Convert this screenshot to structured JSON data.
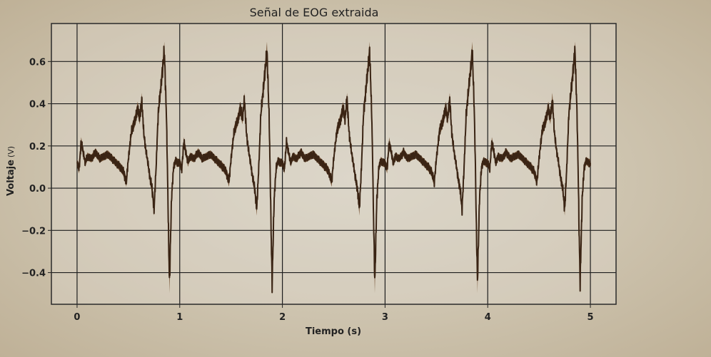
{
  "chart_data": {
    "type": "line",
    "title": "Señal de EOG extraida",
    "xlabel": "Tiempo (s)",
    "ylabel_main": "Voltaje",
    "ylabel_unit": "(V)",
    "xlim": [
      -0.25,
      5.25
    ],
    "ylim": [
      -0.55,
      0.78
    ],
    "xticks": [
      0,
      1,
      2,
      3,
      4,
      5
    ],
    "xtick_labels": [
      "0",
      "1",
      "2",
      "3",
      "4",
      "5"
    ],
    "yticks": [
      -0.4,
      -0.2,
      0.0,
      0.2,
      0.4,
      0.6
    ],
    "ytick_labels": [
      "−0.4",
      "−0.2",
      "0.0",
      "0.2",
      "0.4",
      "0.6"
    ],
    "grid": true,
    "line_color": "#3a2414",
    "fill_color": "#6b4526",
    "series": [
      {
        "period_s": 1.0,
        "cycle_keypoints": {
          "t": [
            0.0,
            0.02,
            0.04,
            0.06,
            0.08,
            0.1,
            0.14,
            0.18,
            0.22,
            0.26,
            0.3,
            0.34,
            0.38,
            0.42,
            0.45,
            0.48,
            0.5,
            0.53,
            0.55,
            0.57,
            0.59,
            0.61,
            0.63,
            0.65,
            0.67,
            0.69,
            0.71,
            0.73,
            0.75,
            0.77,
            0.79,
            0.81,
            0.83,
            0.85,
            0.86,
            0.87,
            0.88,
            0.89,
            0.9,
            0.92,
            0.94,
            0.96,
            0.98,
            1.0
          ],
          "v": [
            0.12,
            0.09,
            0.22,
            0.17,
            0.12,
            0.15,
            0.14,
            0.17,
            0.14,
            0.15,
            0.16,
            0.14,
            0.12,
            0.1,
            0.08,
            0.03,
            0.14,
            0.27,
            0.3,
            0.33,
            0.38,
            0.33,
            0.42,
            0.26,
            0.18,
            0.12,
            0.05,
            0.0,
            -0.1,
            0.1,
            0.35,
            0.45,
            0.55,
            0.65,
            0.5,
            0.35,
            0.1,
            -0.2,
            -0.45,
            -0.05,
            0.1,
            0.13,
            0.12,
            0.12
          ]
        }
      }
    ]
  }
}
